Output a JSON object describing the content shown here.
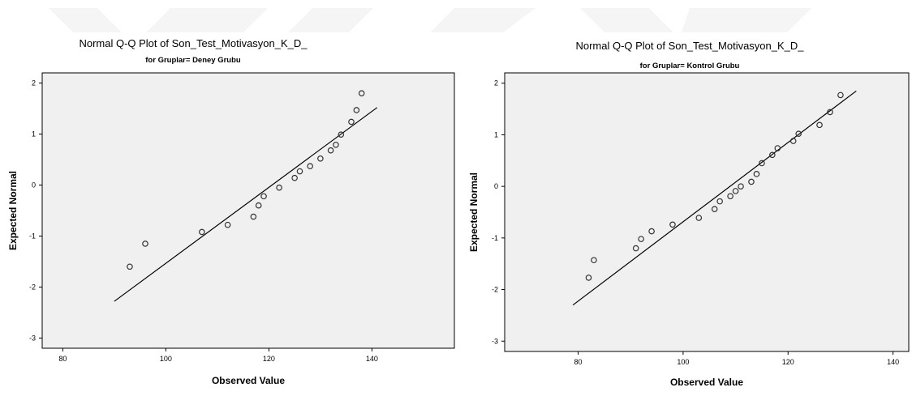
{
  "chart_data": [
    {
      "type": "scatter",
      "title": "Normal Q-Q Plot of Son_Test_Motivasyon_K_D_",
      "subtitle": "for Gruplar= Deney Grubu",
      "xlabel": "Observed Value",
      "ylabel": "Expected Normal",
      "xlim": [
        76,
        156
      ],
      "ylim": [
        -3.2,
        2.2
      ],
      "xticks": [
        "80",
        "100",
        "120",
        "140"
      ],
      "yticks": [
        "2",
        "1",
        "0",
        "-1",
        "-2",
        "-3"
      ],
      "grid": false,
      "plot_background": "#f0f0f0",
      "marker_color": "#333333",
      "line_color": "#000000",
      "points": [
        [
          93,
          -1.6
        ],
        [
          96,
          -1.15
        ],
        [
          107,
          -0.92
        ],
        [
          112,
          -0.78
        ],
        [
          117,
          -0.62
        ],
        [
          118,
          -0.4
        ],
        [
          119,
          -0.22
        ],
        [
          122,
          -0.05
        ],
        [
          125,
          0.14
        ],
        [
          126,
          0.27
        ],
        [
          128,
          0.37
        ],
        [
          130,
          0.52
        ],
        [
          132,
          0.68
        ],
        [
          133,
          0.79
        ],
        [
          134,
          0.99
        ],
        [
          136,
          1.24
        ],
        [
          137,
          1.47
        ],
        [
          138,
          1.8
        ]
      ],
      "reference_line": [
        [
          90,
          -2.28
        ],
        [
          141,
          1.52
        ]
      ]
    },
    {
      "type": "scatter",
      "title": "Normal Q-Q Plot of Son_Test_Motivasyon_K_D_",
      "subtitle": "for Gruplar= Kontrol Grubu",
      "xlabel": "Observed Value",
      "ylabel": "Expected Normal",
      "xlim": [
        66,
        143
      ],
      "ylim": [
        -3.2,
        2.2
      ],
      "xticks": [
        "80",
        "100",
        "120",
        "140"
      ],
      "yticks": [
        "2",
        "1",
        "0",
        "-1",
        "-2",
        "-3"
      ],
      "grid": false,
      "plot_background": "#f0f0f0",
      "marker_color": "#333333",
      "line_color": "#000000",
      "points": [
        [
          82,
          -1.77
        ],
        [
          83,
          -1.43
        ],
        [
          91,
          -1.2
        ],
        [
          92,
          -1.02
        ],
        [
          94,
          -0.87
        ],
        [
          98,
          -0.74
        ],
        [
          103,
          -0.61
        ],
        [
          106,
          -0.44
        ],
        [
          107,
          -0.29
        ],
        [
          109,
          -0.19
        ],
        [
          110,
          -0.09
        ],
        [
          111,
          0.0
        ],
        [
          113,
          0.09
        ],
        [
          114,
          0.24
        ],
        [
          115,
          0.45
        ],
        [
          117,
          0.61
        ],
        [
          118,
          0.74
        ],
        [
          121,
          0.88
        ],
        [
          122,
          1.02
        ],
        [
          126,
          1.19
        ],
        [
          128,
          1.44
        ],
        [
          130,
          1.77
        ]
      ],
      "reference_line": [
        [
          79,
          -2.3
        ],
        [
          133,
          1.85
        ]
      ]
    }
  ]
}
